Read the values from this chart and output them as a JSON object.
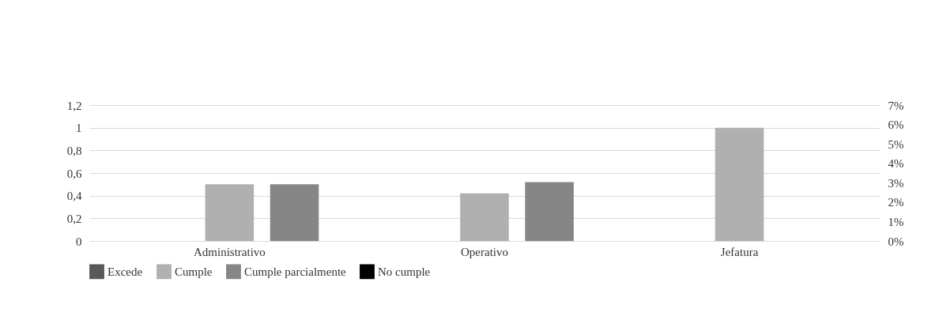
{
  "chart_data": {
    "type": "bar",
    "categories": [
      "Administrativo",
      "Operativo",
      "Jefatura"
    ],
    "series": [
      {
        "name": "Excede",
        "color": "#595959",
        "values": [
          null,
          null,
          null
        ]
      },
      {
        "name": "Cumple",
        "color": "#b0b0b0",
        "values": [
          0.5,
          0.42,
          1
        ]
      },
      {
        "name": "Cumple parcialmente",
        "color": "#868686",
        "values": [
          0.5,
          0.52,
          null
        ]
      },
      {
        "name": "No cumple",
        "color": "#000000",
        "type": "line",
        "axis": "y2",
        "values": [
          null,
          null,
          null
        ]
      }
    ],
    "ylim": [
      0,
      1.2
    ],
    "yticks": [
      0,
      {
        "value": 0.2,
        "label": "0,2"
      },
      {
        "value": 0.4,
        "label": "0,4"
      },
      {
        "value": 0.6,
        "label": "0,6"
      },
      {
        "value": 0.8,
        "label": "0,8"
      },
      1,
      {
        "value": 1.2,
        "label": "1,2"
      }
    ],
    "y2lim": [
      0,
      7
    ],
    "y2ticks": [
      {
        "value": 0,
        "label": "0%"
      },
      {
        "value": 1,
        "label": "1%"
      },
      {
        "value": 2,
        "label": "2%"
      },
      {
        "value": 3,
        "label": "3%"
      },
      {
        "value": 4,
        "label": "4%"
      },
      {
        "value": 5,
        "label": "5%"
      },
      {
        "value": 6,
        "label": "6%"
      },
      {
        "value": 7,
        "label": "7%"
      }
    ],
    "grid": "y",
    "legend": "bottom"
  }
}
